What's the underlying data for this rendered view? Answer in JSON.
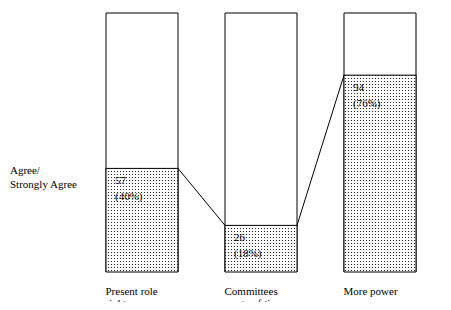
{
  "chart_data": {
    "type": "bar",
    "y_label": "Agree/ Strongly Agree",
    "categories": [
      "Present role right",
      "Committees waste of time",
      "More power"
    ],
    "values": [
      40,
      18,
      76
    ],
    "counts": [
      57,
      26,
      94
    ],
    "value_labels": [
      "(40%)",
      "(18%)",
      "(76%)"
    ],
    "color": "#000000",
    "ylim": [
      0,
      100
    ],
    "tick_labels": "x",
    "data_labels": true
  }
}
